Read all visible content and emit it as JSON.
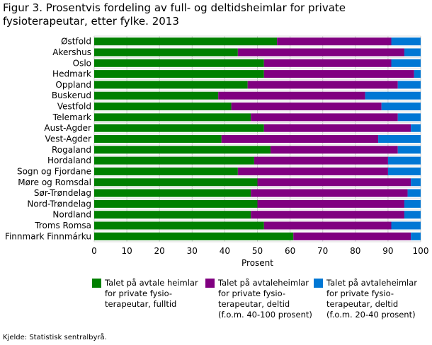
{
  "title": "Figur 3. Prosentvis fordeling av full- og deltidsheimlar for private fysioterapeutar, etter fylke. 2013",
  "source": "Kjelde: Statistisk sentralbyrå.",
  "chart_data": {
    "type": "bar",
    "orientation": "horizontal",
    "stacked": true,
    "xlabel": "Prosent",
    "xlim": [
      0,
      100
    ],
    "xticks": [
      0,
      10,
      20,
      30,
      40,
      50,
      60,
      70,
      80,
      90,
      100
    ],
    "grid": true,
    "legend_position": "bottom",
    "categories": [
      "Østfold",
      "Akershus",
      "Oslo",
      "Hedmark",
      "Oppland",
      "Buskerud",
      "Vestfold",
      "Telemark",
      "Aust-Agder",
      "Vest-Agder",
      "Rogaland",
      "Hordaland",
      "Sogn og Fjordane",
      "Møre og Romsdal",
      "Sør-Trøndelag",
      "Nord-Trøndelag",
      "Nordland",
      "Troms Romsa",
      "Finnmark Finnmárku"
    ],
    "series": [
      {
        "name": "Talet på avtale heimlar\nfor private fysio-\nterapeutar, fulltid",
        "color": "#008000",
        "values": [
          56,
          44,
          52,
          52,
          47,
          38,
          42,
          48,
          52,
          39,
          54,
          49,
          44,
          50,
          48,
          50,
          48,
          52,
          61
        ]
      },
      {
        "name": "Talet på avtaleheimlar\nfor private fysio-\nterapeutar, deltid\n(f.o.m. 40-100 prosent)",
        "color": "#800080",
        "values": [
          35,
          51,
          39,
          46,
          46,
          45,
          46,
          45,
          45,
          48,
          39,
          41,
          46,
          47,
          48,
          45,
          47,
          39,
          36
        ]
      },
      {
        "name": "Talet på avtaleheimlar\nfor private fysio-\nterapeutar, deltid\n(f.o.m. 20-40 prosent)",
        "color": "#0077d4",
        "values": [
          9,
          5,
          9,
          2,
          7,
          17,
          12,
          7,
          3,
          13,
          7,
          10,
          10,
          3,
          4,
          5,
          5,
          9,
          3
        ]
      }
    ]
  }
}
